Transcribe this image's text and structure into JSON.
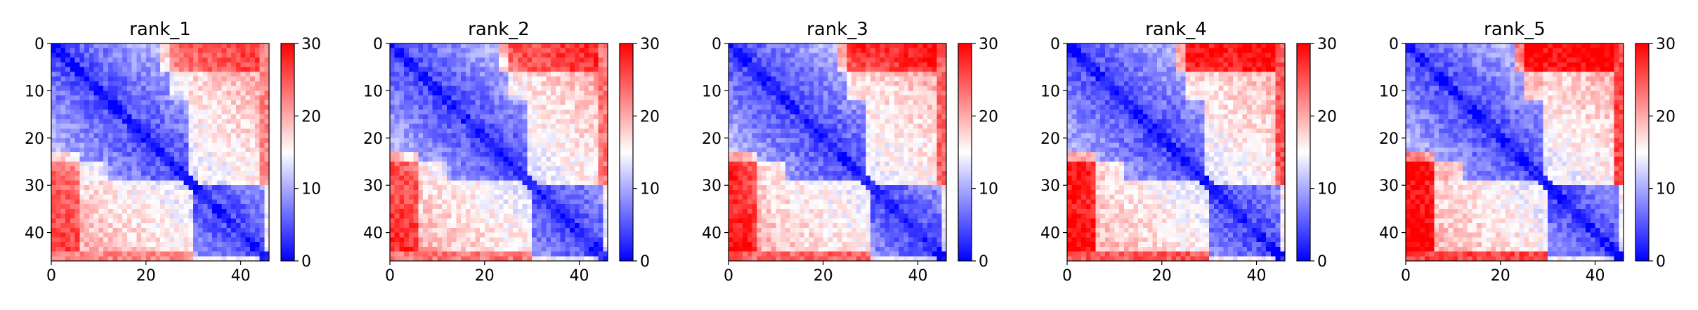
{
  "chart_data": [
    {
      "type": "heatmap",
      "title": "rank_1",
      "matrix_size": 46,
      "x_ticks": [
        0,
        20,
        40
      ],
      "y_ticks": [
        0,
        10,
        20,
        30,
        40
      ],
      "colorbar": {
        "range": [
          0,
          30
        ],
        "ticks": [
          0,
          10,
          20,
          30
        ]
      },
      "colormap": [
        "#0000ff",
        "#ffffff",
        "#ff0000"
      ]
    },
    {
      "type": "heatmap",
      "title": "rank_2",
      "matrix_size": 46,
      "x_ticks": [
        0,
        20,
        40
      ],
      "y_ticks": [
        0,
        10,
        20,
        30,
        40
      ],
      "colorbar": {
        "range": [
          0,
          30
        ],
        "ticks": [
          0,
          10,
          20,
          30
        ]
      },
      "colormap": [
        "#0000ff",
        "#ffffff",
        "#ff0000"
      ]
    },
    {
      "type": "heatmap",
      "title": "rank_3",
      "matrix_size": 46,
      "x_ticks": [
        0,
        20,
        40
      ],
      "y_ticks": [
        0,
        10,
        20,
        30,
        40
      ],
      "colorbar": {
        "range": [
          0,
          30
        ],
        "ticks": [
          0,
          10,
          20,
          30
        ]
      },
      "colormap": [
        "#0000ff",
        "#ffffff",
        "#ff0000"
      ]
    },
    {
      "type": "heatmap",
      "title": "rank_4",
      "matrix_size": 46,
      "x_ticks": [
        0,
        20,
        40
      ],
      "y_ticks": [
        0,
        10,
        20,
        30,
        40
      ],
      "colorbar": {
        "range": [
          0,
          30
        ],
        "ticks": [
          0,
          10,
          20,
          30
        ]
      },
      "colormap": [
        "#0000ff",
        "#ffffff",
        "#ff0000"
      ]
    },
    {
      "type": "heatmap",
      "title": "rank_5",
      "matrix_size": 46,
      "x_ticks": [
        0,
        20,
        40
      ],
      "y_ticks": [
        0,
        10,
        20,
        30,
        40
      ],
      "colorbar": {
        "range": [
          0,
          30
        ],
        "ticks": [
          0,
          10,
          20,
          30
        ]
      },
      "colormap": [
        "#0000ff",
        "#ffffff",
        "#ff0000"
      ]
    }
  ]
}
